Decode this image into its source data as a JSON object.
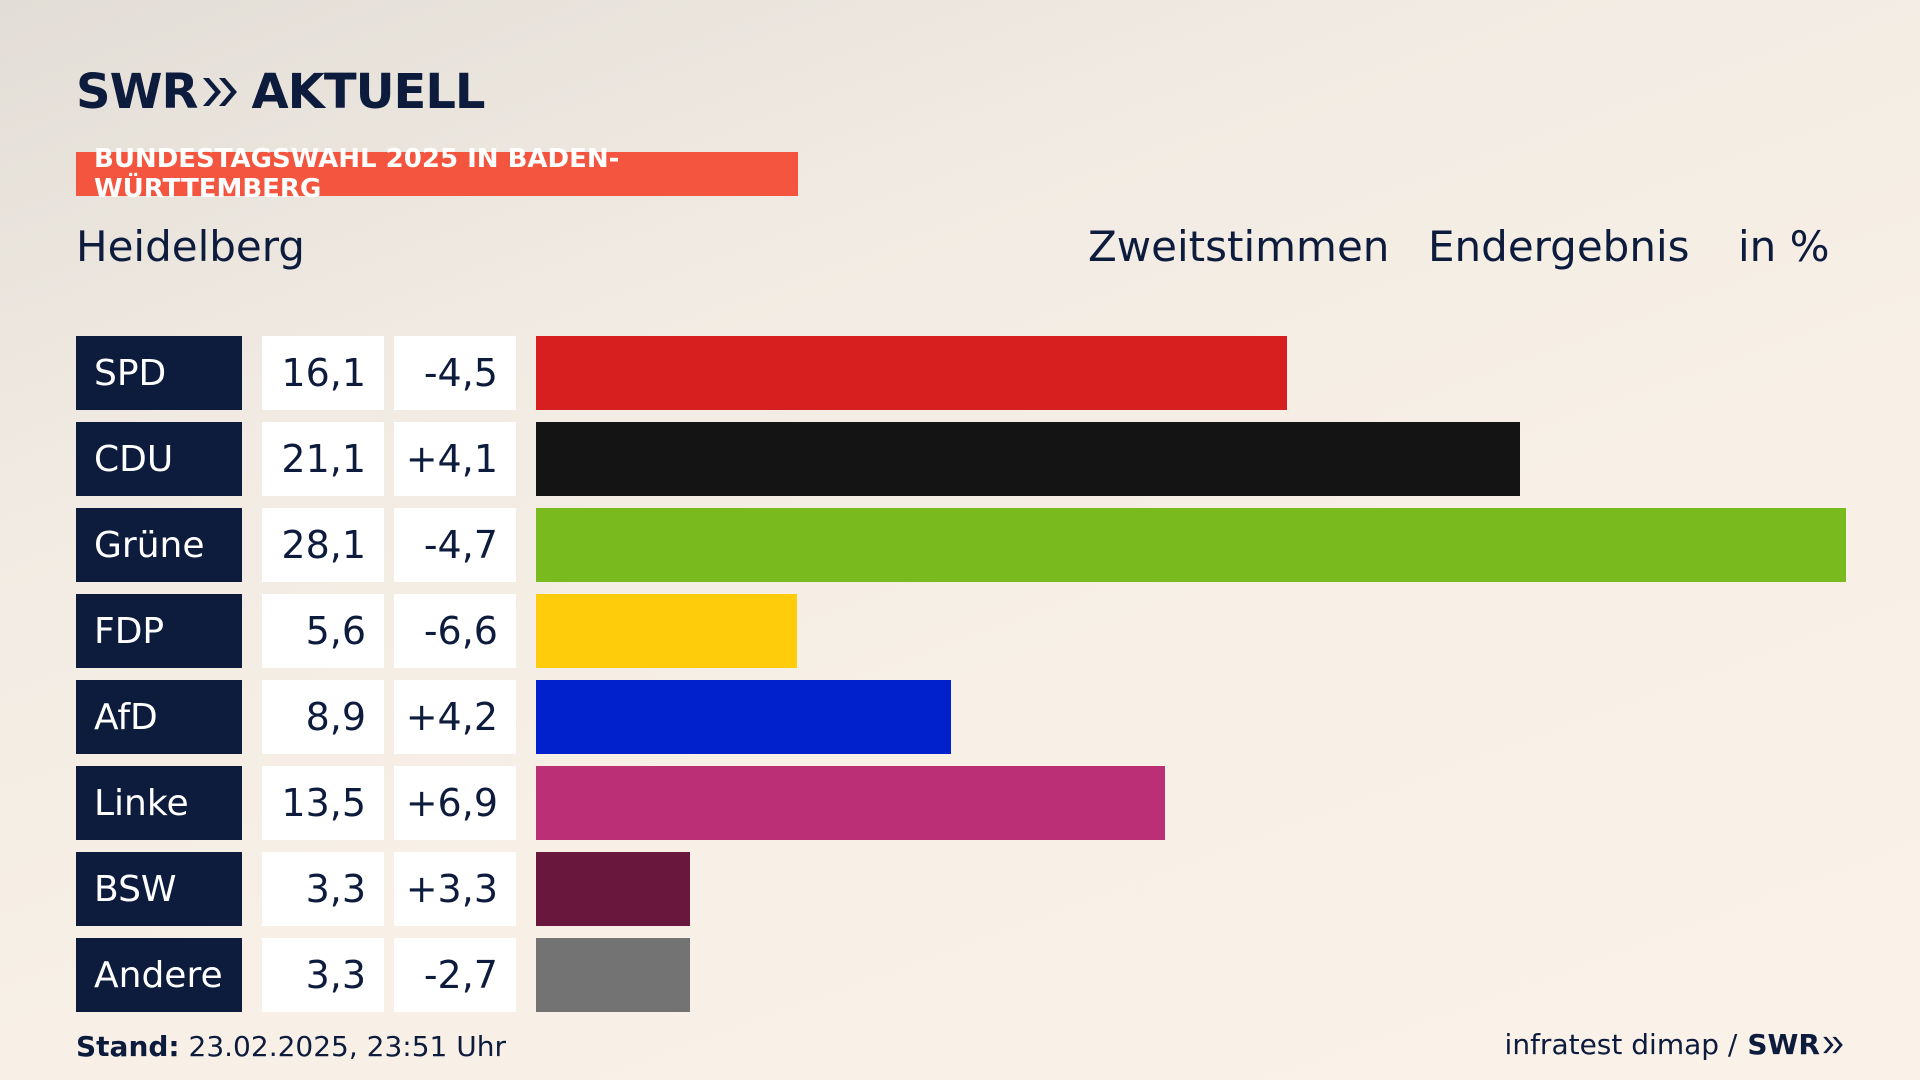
{
  "brand": {
    "logo_left": "SWR",
    "logo_right": "AKTUELL",
    "chevron_icon": "double-chevron-right-icon"
  },
  "kicker": "BUNDESTAGSWAHL 2025 IN BADEN-WÜRTTEMBERG",
  "region": "Heidelberg",
  "header": {
    "vote_type": "Zweitstimmen",
    "result": "Endergebnis",
    "unit": "in %"
  },
  "chart_data": {
    "type": "bar",
    "orientation": "horizontal",
    "xlim": [
      0,
      28.1
    ],
    "categories": [
      "SPD",
      "CDU",
      "Grüne",
      "FDP",
      "AfD",
      "Linke",
      "BSW",
      "Andere"
    ],
    "values": [
      16.1,
      21.1,
      28.1,
      5.6,
      8.9,
      13.5,
      3.3,
      3.3
    ],
    "value_labels": [
      "16,1",
      "21,1",
      "28,1",
      "5,6",
      "8,9",
      "13,5",
      "3,3",
      "3,3"
    ],
    "change_labels": [
      "-4,5",
      "+4,1",
      "-4,7",
      "-6,6",
      "+4,2",
      "+6,9",
      "+3,3",
      "-2,7"
    ],
    "changes": [
      -4.5,
      4.1,
      -4.7,
      -6.6,
      4.2,
      6.9,
      3.3,
      -2.7
    ],
    "colors": [
      "#d81f20",
      "#141414",
      "#79bb1f",
      "#fecc0a",
      "#0021cb",
      "#ba2f75",
      "#69173c",
      "#737373"
    ]
  },
  "footer": {
    "stand_label": "Stand:",
    "stand_value": "23.02.2025, 23:51 Uhr",
    "source": "infratest dimap /",
    "source_brand": "SWR"
  }
}
